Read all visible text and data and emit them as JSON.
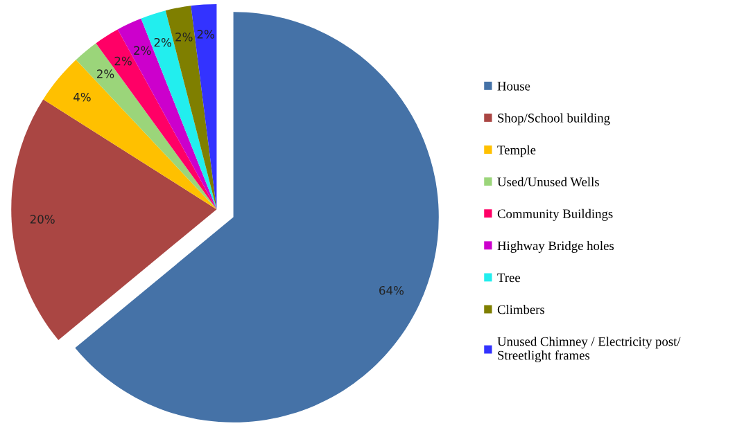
{
  "chart_data": {
    "type": "pie",
    "categories": [
      "House",
      "Shop/School building",
      "Temple",
      "Used/Unused Wells",
      "Community Buildings",
      "Highway Bridge holes",
      "Tree",
      "Climbers",
      "Unused Chimney / Electricity post/ Streetlight frames"
    ],
    "values": [
      64,
      20,
      4,
      2,
      2,
      2,
      2,
      2,
      2
    ],
    "value_labels": [
      "64%",
      "20%",
      "4%",
      "2%",
      "2%",
      "2%",
      "2%",
      "2%",
      "2%"
    ],
    "colors": [
      "#4572a7",
      "#aa4643",
      "#ffc000",
      "#9bd57a",
      "#ff0066",
      "#cc00cc",
      "#22eeee",
      "#7f7f00",
      "#3333ff"
    ],
    "legend": "right"
  }
}
